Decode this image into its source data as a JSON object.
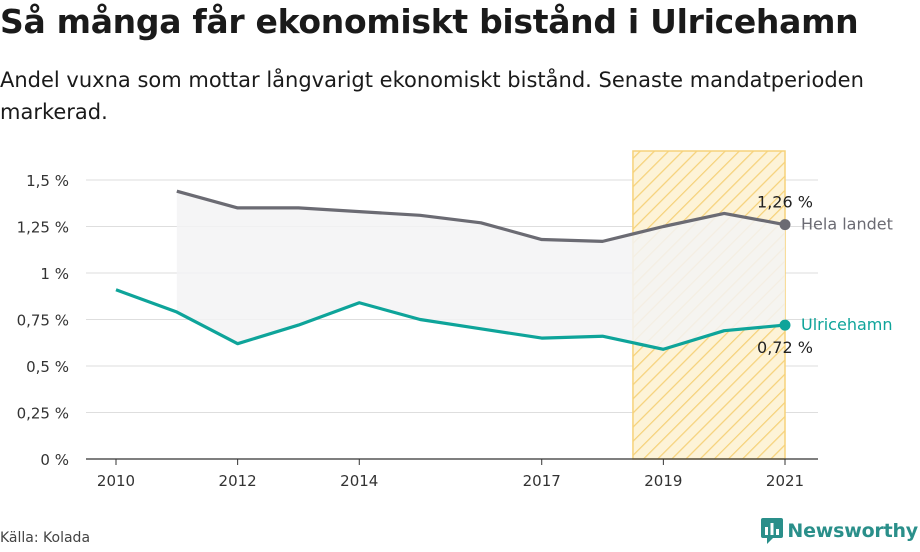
{
  "title": "Så många får ekonomiskt bistånd i Ulricehamn",
  "subtitle": "Andel vuxna som mottar långvarigt ekonomiskt bistånd. Senaste mandatperioden markerad.",
  "source": "Källa: Kolada",
  "logo_text": "Newsworthy",
  "colors": {
    "hela_landet": "#6b6b73",
    "ulricehamn": "#0ea49a",
    "highlight_fill": "#fdf3d7",
    "highlight_stroke": "#f6d27a",
    "band_fill": "#f3f3f4",
    "grid": "#dedede",
    "logo": "#2a8f8a"
  },
  "chart_data": {
    "type": "line",
    "x_ticks": [
      "2010",
      "2012",
      "2014",
      "2017",
      "2019",
      "2021"
    ],
    "y_ticks": [
      "0 %",
      "0,25 %",
      "0,5 %",
      "0,75 %",
      "1 %",
      "1,25 %",
      "1,5 %"
    ],
    "ylim": [
      0,
      1.5
    ],
    "xlim": [
      2010,
      2021
    ],
    "highlight_period": [
      2018.5,
      2021
    ],
    "grid": true,
    "series": [
      {
        "name": "Hela landet",
        "x": [
          2011,
          2012,
          2013,
          2014,
          2015,
          2016,
          2017,
          2018,
          2019,
          2020,
          2021
        ],
        "values": [
          1.44,
          1.35,
          1.35,
          1.33,
          1.31,
          1.27,
          1.18,
          1.17,
          1.25,
          1.32,
          1.26
        ],
        "end_label": "1,26 %"
      },
      {
        "name": "Ulricehamn",
        "x": [
          2010,
          2011,
          2012,
          2013,
          2014,
          2015,
          2016,
          2017,
          2018,
          2019,
          2020,
          2021
        ],
        "values": [
          0.91,
          0.79,
          0.62,
          0.72,
          0.84,
          0.75,
          0.7,
          0.65,
          0.66,
          0.59,
          0.69,
          0.72
        ],
        "end_label": "0,72 %"
      }
    ]
  }
}
